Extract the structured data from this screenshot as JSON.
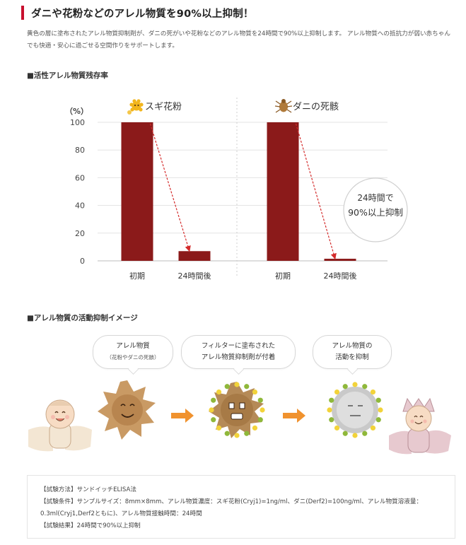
{
  "header": {
    "title": "ダニや花粉などのアレル物質を90%以上抑制！",
    "accent_color": "#c8102e"
  },
  "lead_text": "黄色の層に塗布されたアレル物質抑制剤が、ダニの死がいや花粉などのアレル物質を24時間で90%以上抑制します。 アレル物質への抵抗力が弱い赤ちゃんでも快適・安心に過ごせる空間作りをサポートします。",
  "section1_title": "■活性アレル物質残存率",
  "chart_data": {
    "type": "bar",
    "ylabel": "（%）",
    "ylim": [
      0,
      100
    ],
    "yticks": [
      0,
      20,
      40,
      60,
      80,
      100
    ],
    "grid": true,
    "bar_color": "#8b1a1a",
    "groups": [
      {
        "name": "スギ花粉",
        "icon": "pollen-icon",
        "categories": [
          "初期",
          "24時間後"
        ],
        "values": [
          100,
          7
        ]
      },
      {
        "name": "ダニの死骸",
        "icon": "mite-icon",
        "categories": [
          "初期",
          "24時間後"
        ],
        "values": [
          100,
          1.5
        ]
      }
    ],
    "annotation": {
      "line1": "24時間で",
      "line2": "90%以上抑制"
    }
  },
  "section2_title": "■アレル物質の活動抑制イメージ",
  "bubbles": {
    "b1_line1": "アレル物質",
    "b1_line2": "（花粉やダニの死骸）",
    "b2_line1": "フィルターに塗布された",
    "b2_line2": "アレル物質抑制剤が付着",
    "b3_line1": "アレル物質の",
    "b3_line2": "活動を抑制"
  },
  "notes": {
    "method": "【試験方法】サンドイッチELISA法",
    "conditions": "【試験条件】サンプルサイズ：8mm×8mm、アレル物質濃度：スギ花粉(Cryj1)=1ng/ml、ダニ(Derf2)=100ng/ml、アレル物質溶液量：0.3ml(Cryj1,Derf2ともに)、アレル物質接触時間：24時間",
    "result": "【試験結果】24時間で90%以上抑制"
  }
}
